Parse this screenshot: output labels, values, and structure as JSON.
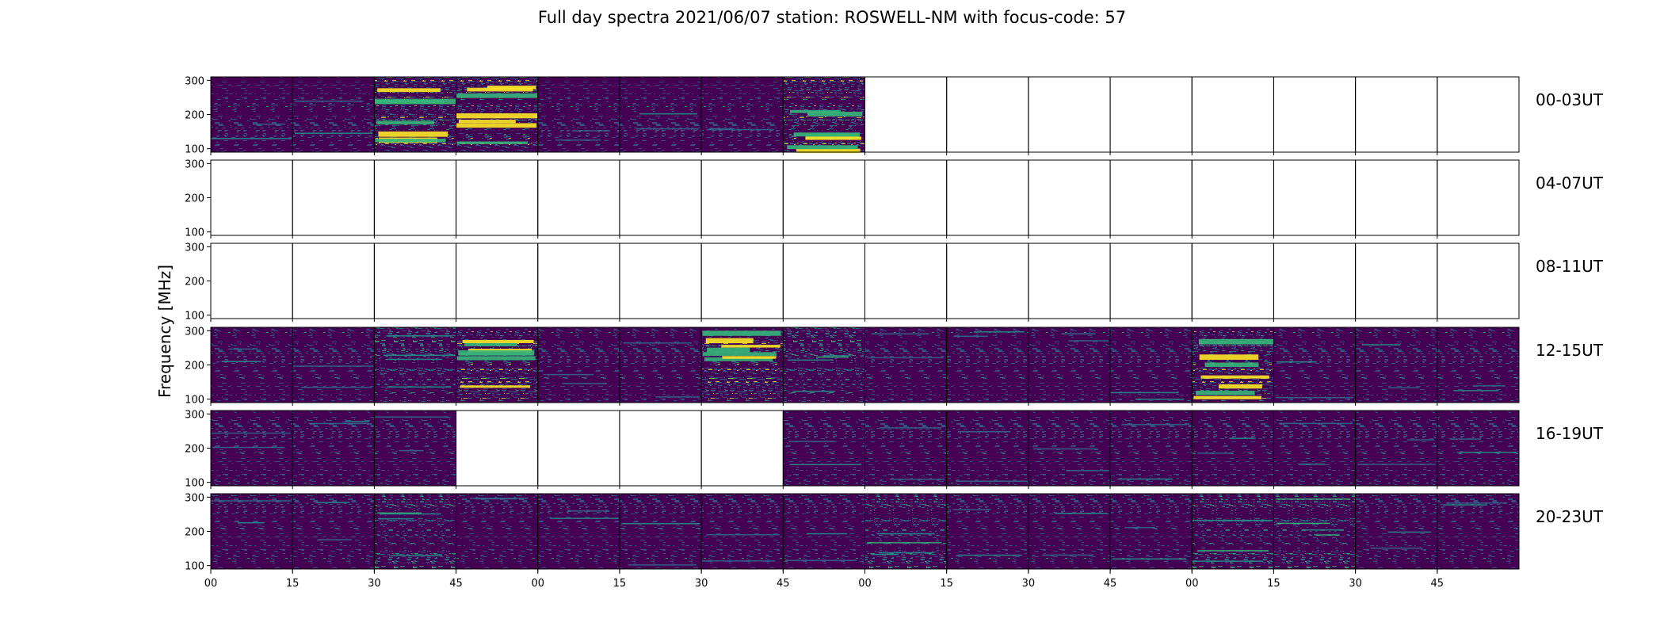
{
  "chart_data": {
    "type": "heatmap",
    "title": "Full day spectra 2021/06/07 station: ROSWELL-NM with focus-code: 57",
    "ylabel": "Frequency [MHz]",
    "xlabel": "",
    "y_ticks": [
      "300",
      "200",
      "100"
    ],
    "ylim": [
      90,
      310
    ],
    "x_ticks": [
      "00",
      "15",
      "30",
      "45",
      "00",
      "15",
      "30",
      "45",
      "00",
      "15",
      "30",
      "45",
      "00",
      "15",
      "30",
      "45"
    ],
    "colormap": "viridis",
    "colors": {
      "low": "#440154",
      "mid": "#31688e",
      "teal": "#21918c",
      "green": "#35b779",
      "high": "#fde725"
    },
    "panels_per_row": 16,
    "panel_minutes": 15,
    "rows": [
      {
        "label": "00-03UT",
        "data_present": [
          true,
          true,
          true,
          true,
          true,
          true,
          true,
          true,
          false,
          false,
          false,
          false,
          false,
          false,
          false,
          false
        ],
        "intensity": [
          "low",
          "low",
          "high",
          "high",
          "low",
          "low",
          "low",
          "high",
          "none",
          "none",
          "none",
          "none",
          "none",
          "none",
          "none",
          "none"
        ]
      },
      {
        "label": "04-07UT",
        "data_present": [
          false,
          false,
          false,
          false,
          false,
          false,
          false,
          false,
          false,
          false,
          false,
          false,
          false,
          false,
          false,
          false
        ],
        "intensity": [
          "none",
          "none",
          "none",
          "none",
          "none",
          "none",
          "none",
          "none",
          "none",
          "none",
          "none",
          "none",
          "none",
          "none",
          "none",
          "none"
        ]
      },
      {
        "label": "08-11UT",
        "data_present": [
          false,
          false,
          false,
          false,
          false,
          false,
          false,
          false,
          false,
          false,
          false,
          false,
          false,
          false,
          false,
          false
        ],
        "intensity": [
          "none",
          "none",
          "none",
          "none",
          "none",
          "none",
          "none",
          "none",
          "none",
          "none",
          "none",
          "none",
          "none",
          "none",
          "none",
          "none"
        ]
      },
      {
        "label": "12-15UT",
        "data_present": [
          true,
          true,
          true,
          true,
          true,
          true,
          true,
          true,
          true,
          true,
          true,
          true,
          true,
          true,
          true,
          true
        ],
        "intensity": [
          "low",
          "low",
          "medium",
          "high",
          "low",
          "low",
          "high",
          "medium",
          "low",
          "low",
          "low",
          "low",
          "high",
          "low",
          "low",
          "low"
        ]
      },
      {
        "label": "16-19UT",
        "data_present": [
          true,
          true,
          true,
          false,
          false,
          false,
          false,
          true,
          true,
          true,
          true,
          true,
          true,
          true,
          true,
          true
        ],
        "intensity": [
          "low",
          "low",
          "low",
          "none",
          "none",
          "none",
          "none",
          "low",
          "low",
          "low",
          "low",
          "low",
          "low",
          "low",
          "low",
          "low"
        ]
      },
      {
        "label": "20-23UT",
        "data_present": [
          true,
          true,
          true,
          true,
          true,
          true,
          true,
          true,
          true,
          true,
          true,
          true,
          true,
          true,
          true,
          true
        ],
        "intensity": [
          "low",
          "low",
          "medium",
          "low",
          "low",
          "low",
          "low",
          "low",
          "medium",
          "low",
          "low",
          "low",
          "medium",
          "medium",
          "low",
          "low"
        ]
      }
    ]
  }
}
